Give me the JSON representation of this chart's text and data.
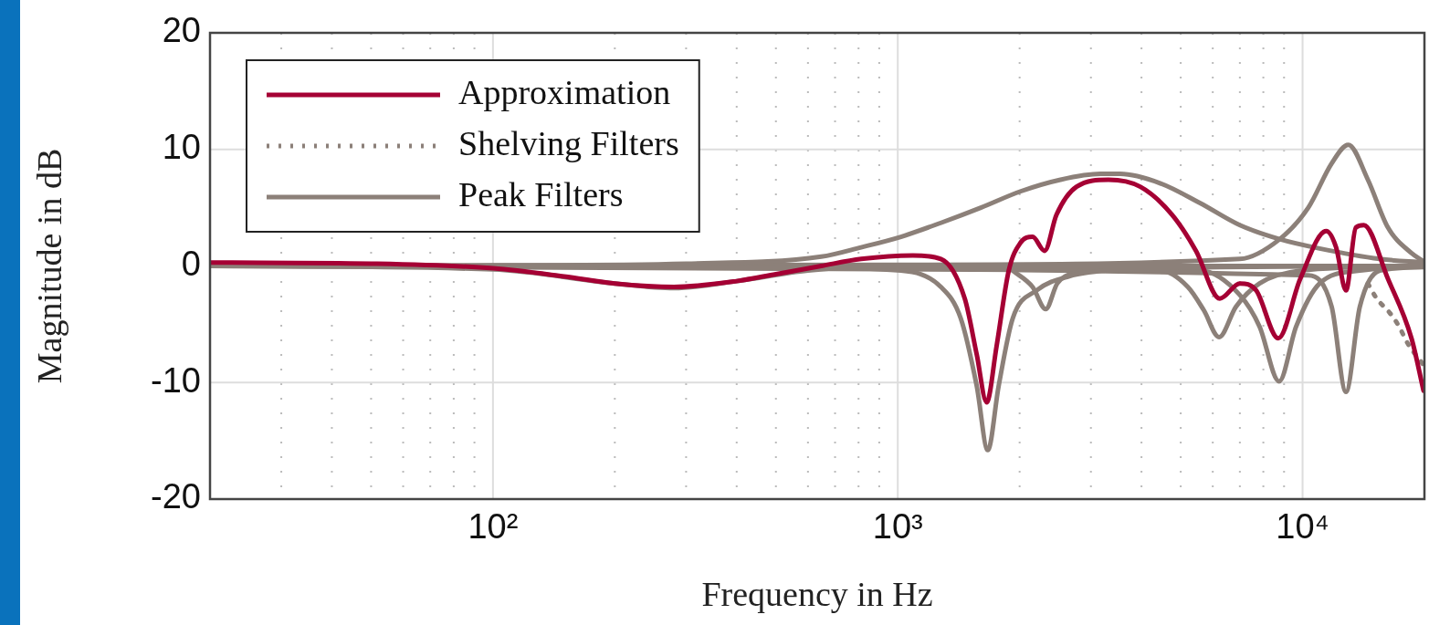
{
  "chart_data": {
    "type": "line",
    "xlabel": "Frequency in Hz",
    "ylabel": "Magnitude in dB",
    "log": "x",
    "grid": true,
    "legend": "top left",
    "xlim": [
      20,
      20000
    ],
    "ylim": [
      -20,
      20
    ],
    "yticks": [
      -20,
      -10,
      0,
      10,
      20
    ],
    "xticks": [
      {
        "value": 20,
        "label": null
      },
      {
        "value": 30,
        "label": null
      },
      {
        "value": 40,
        "label": null
      },
      {
        "value": 50,
        "label": null
      },
      {
        "value": 60,
        "label": null
      },
      {
        "value": 70,
        "label": null
      },
      {
        "value": 80,
        "label": null
      },
      {
        "value": 90,
        "label": null
      },
      {
        "value": 100,
        "label": "10²"
      },
      {
        "value": 200,
        "label": null
      },
      {
        "value": 300,
        "label": null
      },
      {
        "value": 400,
        "label": null
      },
      {
        "value": 500,
        "label": null
      },
      {
        "value": 600,
        "label": null
      },
      {
        "value": 700,
        "label": null
      },
      {
        "value": 800,
        "label": null
      },
      {
        "value": 900,
        "label": null
      },
      {
        "value": 1000,
        "label": "10³"
      },
      {
        "value": 2000,
        "label": null
      },
      {
        "value": 3000,
        "label": null
      },
      {
        "value": 4000,
        "label": null
      },
      {
        "value": 5000,
        "label": null
      },
      {
        "value": 6000,
        "label": null
      },
      {
        "value": 7000,
        "label": null
      },
      {
        "value": 8000,
        "label": null
      },
      {
        "value": 9000,
        "label": null
      },
      {
        "value": 10000,
        "label": "10⁴"
      }
    ],
    "series": [
      {
        "name": "Approximation",
        "color": "#a50034",
        "line_style": "solid",
        "x": [
          20,
          50,
          100,
          150,
          200,
          280,
          400,
          500,
          647,
          812,
          1090,
          1278,
          1464,
          1567,
          1658,
          1754,
          1880,
          2010,
          2153,
          2305,
          2467,
          2765,
          3315,
          3972,
          4760,
          5454,
          6246,
          7000,
          7680,
          8710,
          9870,
          11440,
          12100,
          12800,
          13540,
          14170,
          16250,
          18580,
          19900
        ],
        "values": [
          0.3,
          0.2,
          -0.2,
          -0.9,
          -1.5,
          -1.8,
          -1.3,
          -0.7,
          0,
          0.6,
          0.9,
          0.6,
          -2.8,
          -7.6,
          -11.7,
          -6.9,
          -0.4,
          2.0,
          2.5,
          1.3,
          4.4,
          6.8,
          7.4,
          6.8,
          4.4,
          1.3,
          -2.8,
          -1.5,
          -2.1,
          -6.2,
          -1.1,
          3.0,
          1.6,
          -2.1,
          3.3,
          3.5,
          -1.1,
          -6.2,
          -10.7
        ]
      },
      {
        "name": "Shelving Filters",
        "color": "#8c8079",
        "line_style": "dotted",
        "x": [
          14500,
          15250,
          16400,
          17320,
          18150,
          19900
        ],
        "values": [
          -1.5,
          -2.8,
          -4,
          -5.2,
          -6.6,
          -8.5
        ]
      },
      {
        "name": "Peak Filters",
        "color": "#8c8079",
        "line_style": "solid",
        "x": [
          20,
          100,
          200,
          280,
          400,
          600,
          1000,
          20000
        ],
        "values": [
          0,
          -0.3,
          -1.5,
          -1.9,
          -1.3,
          -0.4,
          0,
          0
        ]
      },
      {
        "color": "#8c8079",
        "line_style": "solid",
        "x": [
          20,
          100,
          300,
          647,
          812,
          1018,
          1278,
          1604,
          2010,
          2523,
          3166,
          3543,
          4445,
          5579,
          7000,
          8780,
          11020,
          15520,
          19900
        ],
        "values": [
          0,
          0.05,
          0.2,
          0.8,
          1.6,
          2.5,
          3.7,
          5.0,
          6.4,
          7.4,
          7.9,
          7.9,
          7.1,
          5.4,
          3.5,
          2.3,
          1.5,
          0.6,
          0.3
        ]
      },
      {
        "color": "#8c8079",
        "line_style": "solid",
        "x": [
          20,
          500,
          1018,
          1278,
          1431,
          1567,
          1669,
          1775,
          1923,
          2201,
          2642,
          3543,
          6246,
          20000
        ],
        "values": [
          0,
          -0.1,
          -0.4,
          -1.8,
          -4.5,
          -10.3,
          -15.8,
          -10.3,
          -4.5,
          -2.1,
          -0.9,
          -0.3,
          -0.1,
          0
        ]
      },
      {
        "color": "#8c8079",
        "line_style": "solid",
        "x": [
          1923,
          2153,
          2320,
          2478,
          2826
        ],
        "values": [
          -0.4,
          -1.8,
          -3.7,
          -1.5,
          -0.4
        ]
      },
      {
        "color": "#8c8079",
        "line_style": "solid",
        "x": [
          20,
          4445,
          5207,
          5702,
          6220,
          6845,
          7830,
          9870,
          20000
        ],
        "values": [
          0,
          -0.4,
          -1.8,
          -3.8,
          -6.1,
          -3.5,
          -1.5,
          -0.4,
          0
        ]
      },
      {
        "color": "#8c8079",
        "line_style": "solid",
        "x": [
          20,
          5579,
          7000,
          7830,
          8750,
          9640,
          11020,
          13850,
          20000
        ],
        "values": [
          0,
          -0.4,
          -2.5,
          -5.2,
          -9.9,
          -5.2,
          -1.5,
          -0.4,
          0
        ]
      },
      {
        "color": "#8c8079",
        "line_style": "solid",
        "x": [
          20,
          1000,
          7000,
          8780,
          10330,
          11800,
          12970,
          14500,
          16250,
          18580,
          19900
        ],
        "values": [
          0,
          0.1,
          0.6,
          2.3,
          5.0,
          8.8,
          10.4,
          7.4,
          3.3,
          1.1,
          0.4
        ]
      },
      {
        "color": "#8c8079",
        "line_style": "solid",
        "x": [
          20,
          10330,
          11800,
          12800,
          13850,
          15520,
          19900
        ],
        "values": [
          0,
          -0.8,
          -3.5,
          -10.8,
          -3.5,
          -0.4,
          -0.1
        ]
      }
    ]
  }
}
